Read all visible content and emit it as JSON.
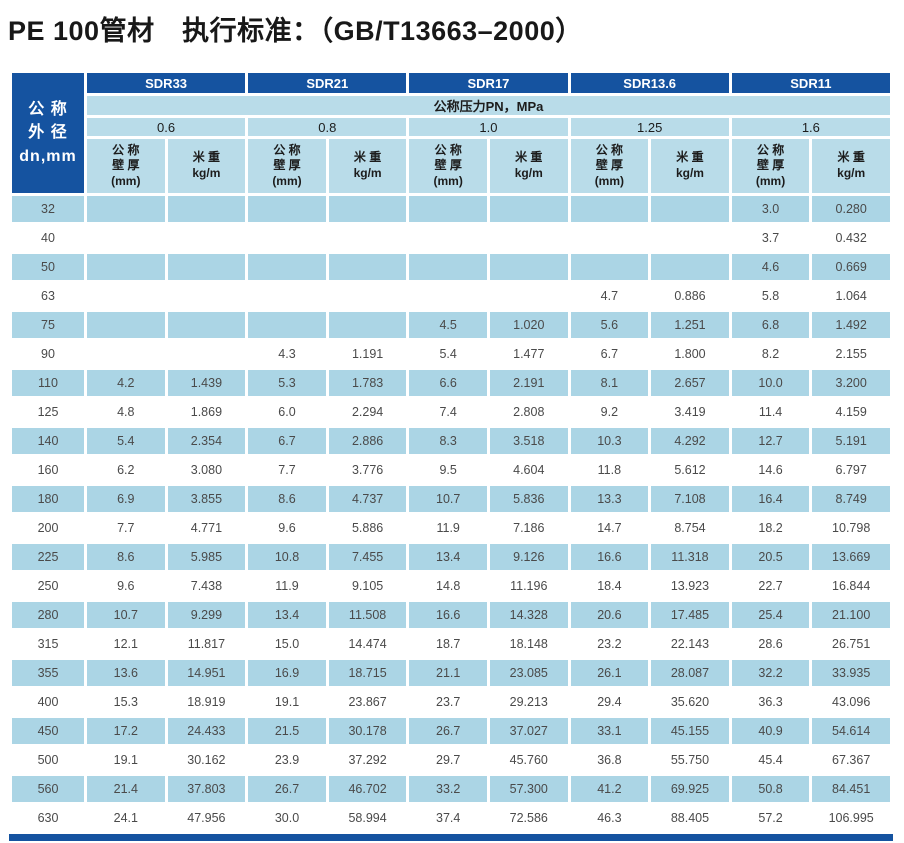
{
  "page": {
    "title": "PE 100管材　执行标准：（GB/T13663–2000）"
  },
  "colors": {
    "dark_blue": "#1553a0",
    "header_blue": "#b9dce9",
    "stripe_blue": "#abd5e5"
  },
  "table": {
    "corner_label": "公 称\n外 径\ndn,mm",
    "sdr_groups": [
      "SDR33",
      "SDR21",
      "SDR17",
      "SDR13.6",
      "SDR11"
    ],
    "pressure_header": "公称压力PN，MPa",
    "pressures": [
      "0.6",
      "0.8",
      "1.0",
      "1.25",
      "1.6"
    ],
    "thickness_label": "公 称\n壁 厚\n(mm)",
    "weight_label": "米 重\nkg/m",
    "rows": [
      {
        "dn": "32",
        "values": [
          "",
          "",
          "",
          "",
          "",
          "",
          "",
          "",
          "3.0",
          "0.280"
        ]
      },
      {
        "dn": "40",
        "values": [
          "",
          "",
          "",
          "",
          "",
          "",
          "",
          "",
          "3.7",
          "0.432"
        ]
      },
      {
        "dn": "50",
        "values": [
          "",
          "",
          "",
          "",
          "",
          "",
          "",
          "",
          "4.6",
          "0.669"
        ]
      },
      {
        "dn": "63",
        "values": [
          "",
          "",
          "",
          "",
          "",
          "",
          "4.7",
          "0.886",
          "5.8",
          "1.064"
        ]
      },
      {
        "dn": "75",
        "values": [
          "",
          "",
          "",
          "",
          "4.5",
          "1.020",
          "5.6",
          "1.251",
          "6.8",
          "1.492"
        ]
      },
      {
        "dn": "90",
        "values": [
          "",
          "",
          "4.3",
          "1.191",
          "5.4",
          "1.477",
          "6.7",
          "1.800",
          "8.2",
          "2.155"
        ]
      },
      {
        "dn": "110",
        "values": [
          "4.2",
          "1.439",
          "5.3",
          "1.783",
          "6.6",
          "2.191",
          "8.1",
          "2.657",
          "10.0",
          "3.200"
        ]
      },
      {
        "dn": "125",
        "values": [
          "4.8",
          "1.869",
          "6.0",
          "2.294",
          "7.4",
          "2.808",
          "9.2",
          "3.419",
          "11.4",
          "4.159"
        ]
      },
      {
        "dn": "140",
        "values": [
          "5.4",
          "2.354",
          "6.7",
          "2.886",
          "8.3",
          "3.518",
          "10.3",
          "4.292",
          "12.7",
          "5.191"
        ]
      },
      {
        "dn": "160",
        "values": [
          "6.2",
          "3.080",
          "7.7",
          "3.776",
          "9.5",
          "4.604",
          "11.8",
          "5.612",
          "14.6",
          "6.797"
        ]
      },
      {
        "dn": "180",
        "values": [
          "6.9",
          "3.855",
          "8.6",
          "4.737",
          "10.7",
          "5.836",
          "13.3",
          "7.108",
          "16.4",
          "8.749"
        ]
      },
      {
        "dn": "200",
        "values": [
          "7.7",
          "4.771",
          "9.6",
          "5.886",
          "11.9",
          "7.186",
          "14.7",
          "8.754",
          "18.2",
          "10.798"
        ]
      },
      {
        "dn": "225",
        "values": [
          "8.6",
          "5.985",
          "10.8",
          "7.455",
          "13.4",
          "9.126",
          "16.6",
          "11.318",
          "20.5",
          "13.669"
        ]
      },
      {
        "dn": "250",
        "values": [
          "9.6",
          "7.438",
          "11.9",
          "9.105",
          "14.8",
          "11.196",
          "18.4",
          "13.923",
          "22.7",
          "16.844"
        ]
      },
      {
        "dn": "280",
        "values": [
          "10.7",
          "9.299",
          "13.4",
          "11.508",
          "16.6",
          "14.328",
          "20.6",
          "17.485",
          "25.4",
          "21.100"
        ]
      },
      {
        "dn": "315",
        "values": [
          "12.1",
          "11.817",
          "15.0",
          "14.474",
          "18.7",
          "18.148",
          "23.2",
          "22.143",
          "28.6",
          "26.751"
        ]
      },
      {
        "dn": "355",
        "values": [
          "13.6",
          "14.951",
          "16.9",
          "18.715",
          "21.1",
          "23.085",
          "26.1",
          "28.087",
          "32.2",
          "33.935"
        ]
      },
      {
        "dn": "400",
        "values": [
          "15.3",
          "18.919",
          "19.1",
          "23.867",
          "23.7",
          "29.213",
          "29.4",
          "35.620",
          "36.3",
          "43.096"
        ]
      },
      {
        "dn": "450",
        "values": [
          "17.2",
          "24.433",
          "21.5",
          "30.178",
          "26.7",
          "37.027",
          "33.1",
          "45.155",
          "40.9",
          "54.614"
        ]
      },
      {
        "dn": "500",
        "values": [
          "19.1",
          "30.162",
          "23.9",
          "37.292",
          "29.7",
          "45.760",
          "36.8",
          "55.750",
          "45.4",
          "67.367"
        ]
      },
      {
        "dn": "560",
        "values": [
          "21.4",
          "37.803",
          "26.7",
          "46.702",
          "33.2",
          "57.300",
          "41.2",
          "69.925",
          "50.8",
          "84.451"
        ]
      },
      {
        "dn": "630",
        "values": [
          "24.1",
          "47.956",
          "30.0",
          "58.994",
          "37.4",
          "72.586",
          "46.3",
          "88.405",
          "57.2",
          "106.995"
        ]
      }
    ]
  }
}
